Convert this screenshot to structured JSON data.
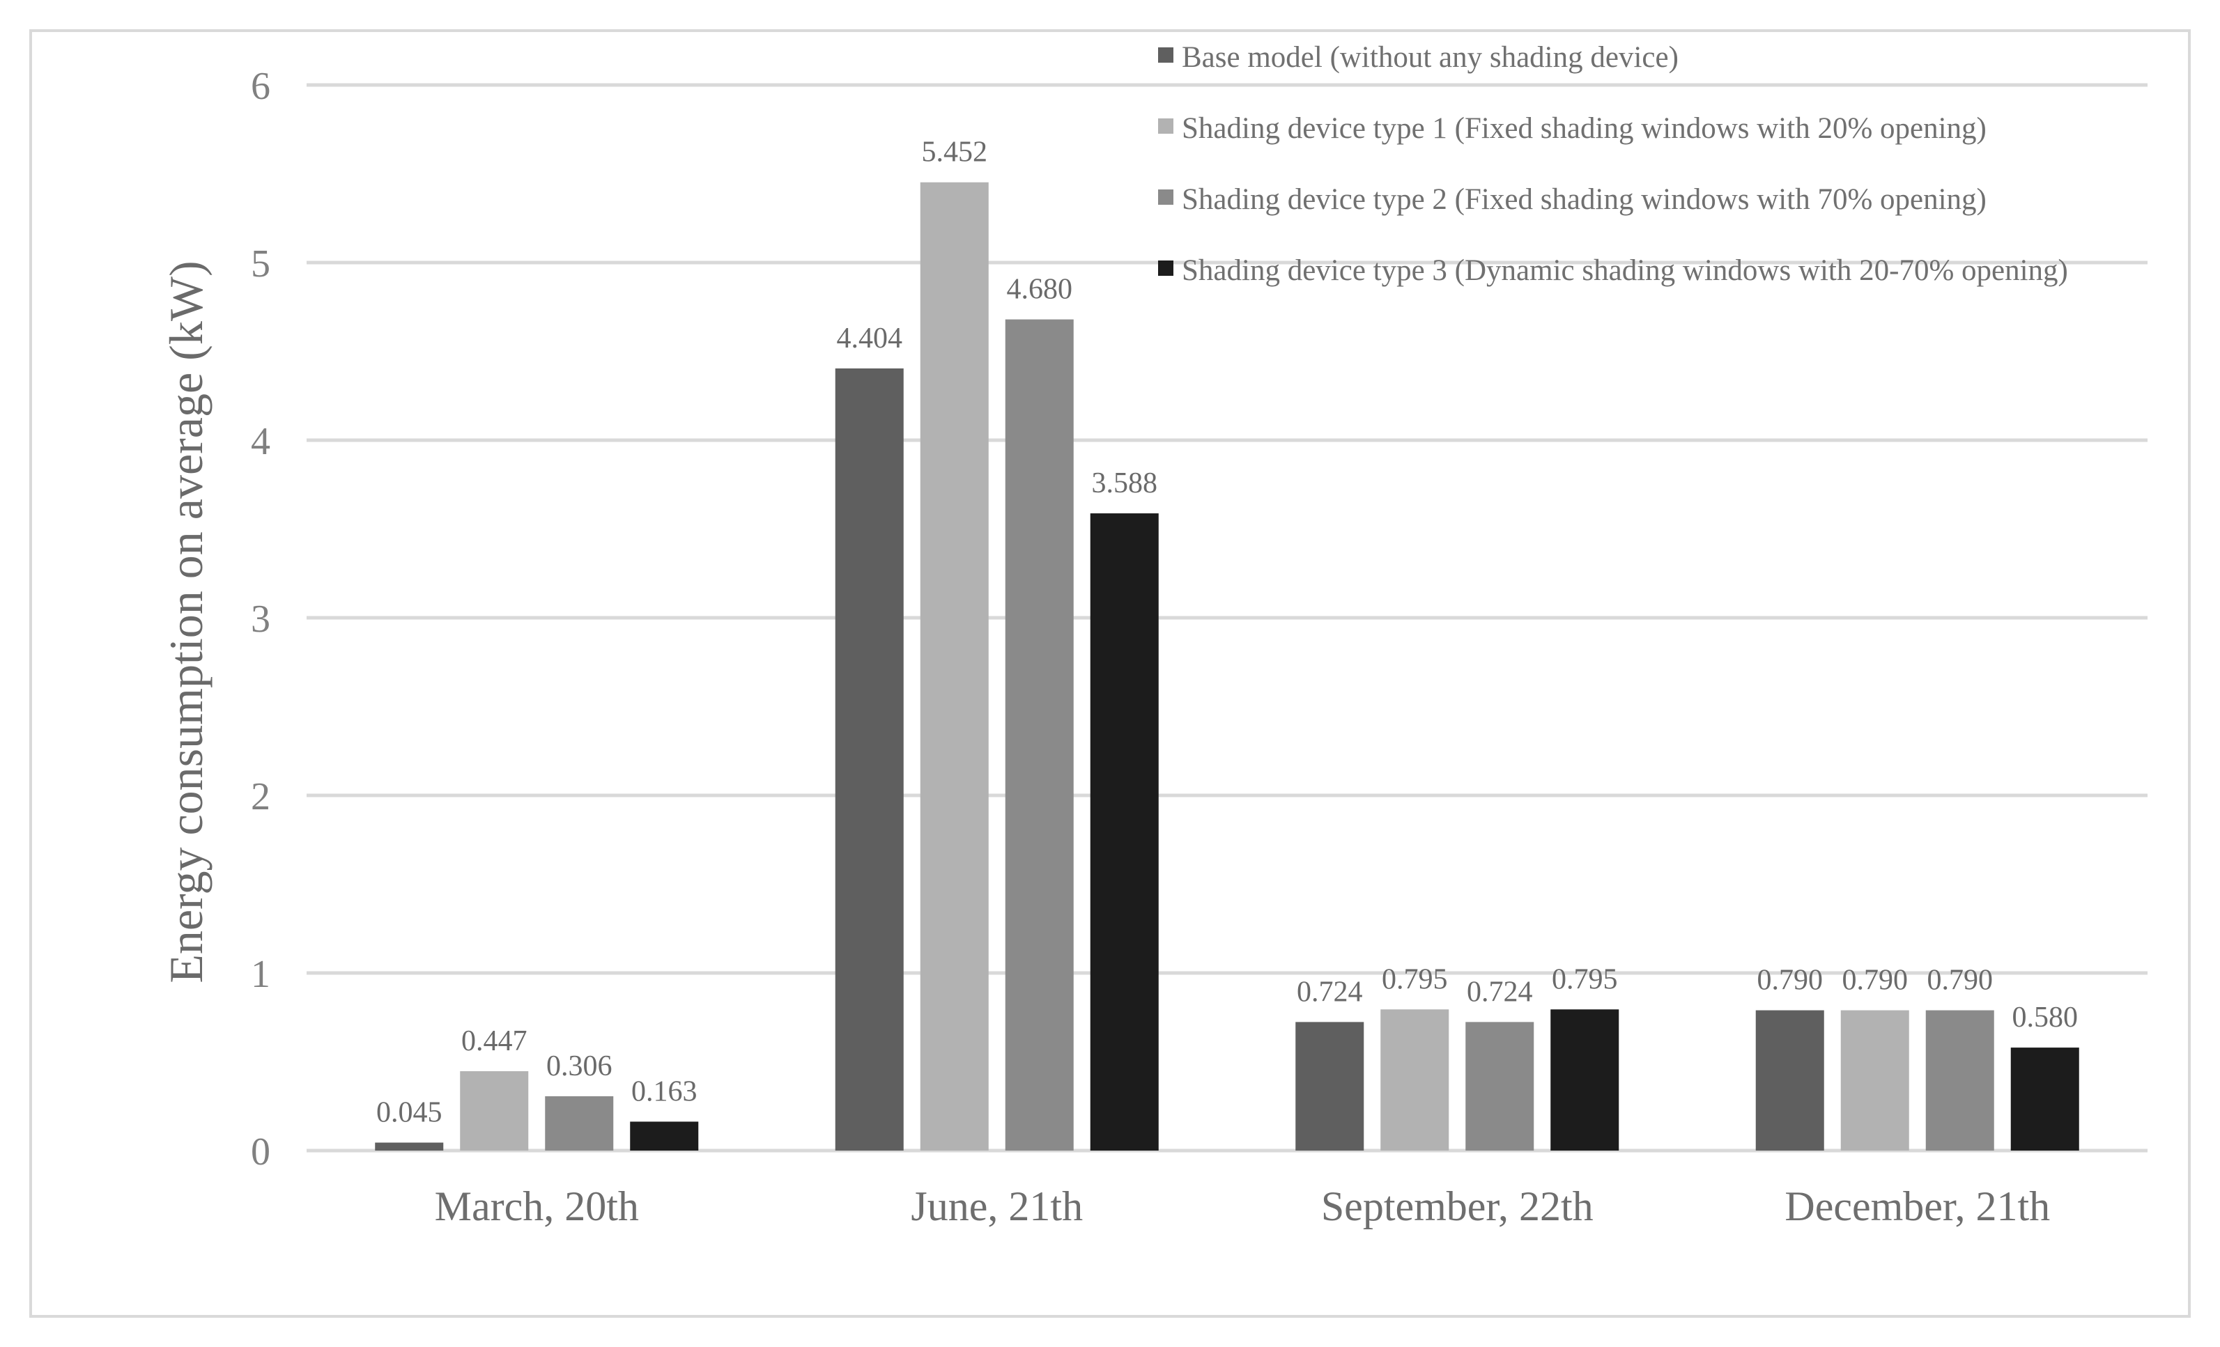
{
  "chart_data": {
    "type": "bar",
    "ylabel": "Energy consumption on average (kW)",
    "xlabel": "",
    "ylim": [
      0,
      6
    ],
    "yticks": [
      0,
      1,
      2,
      3,
      4,
      5,
      6
    ],
    "grid": true,
    "legend_position": "top-right",
    "categories": [
      "March, 20th",
      "June, 21th",
      "September, 22th",
      "December, 21th"
    ],
    "series": [
      {
        "name": "Base model (without any shading device)",
        "color": "#5f5f5f",
        "values": [
          0.045,
          4.404,
          0.724,
          0.79
        ],
        "labels": [
          "0.045",
          "4.404",
          "0.724",
          "0.790"
        ]
      },
      {
        "name": "Shading device type 1 (Fixed shading windows with 20% opening)",
        "color": "#b2b2b2",
        "values": [
          0.447,
          5.452,
          0.795,
          0.79
        ],
        "labels": [
          "0.447",
          "5.452",
          "0.795",
          "0.790"
        ]
      },
      {
        "name": "Shading device type 2 (Fixed shading windows with 70% opening)",
        "color": "#8a8a8a",
        "values": [
          0.306,
          4.68,
          0.724,
          0.79
        ],
        "labels": [
          "0.306",
          "4.680",
          "0.724",
          "0.790"
        ]
      },
      {
        "name": "Shading device type 3 (Dynamic shading windows with 20-70% opening)",
        "color": "#1c1c1c",
        "values": [
          0.163,
          3.588,
          0.795,
          0.58
        ],
        "labels": [
          "0.163",
          "3.588",
          "0.795",
          "0.580"
        ]
      }
    ]
  }
}
